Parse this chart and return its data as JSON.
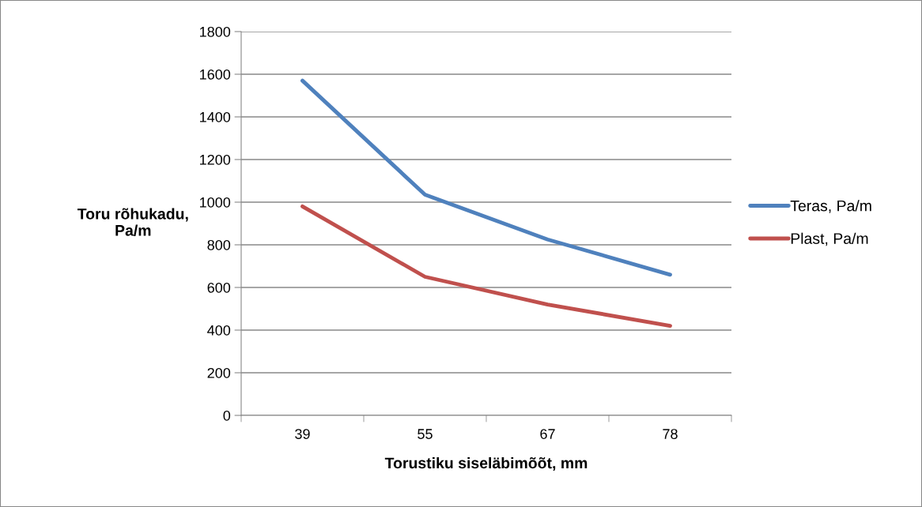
{
  "chart_data": {
    "type": "line",
    "xlabel": "Torustiku siseläbimõõt, mm",
    "ylabel": "Toru rõhukadu,\nPa/m",
    "categories": [
      "39",
      "55",
      "67",
      "78"
    ],
    "series": [
      {
        "name": "Teras, Pa/m",
        "color": "#4f81bd",
        "values": [
          1570,
          1035,
          825,
          660
        ]
      },
      {
        "name": "Plast, Pa/m",
        "color": "#c0504d",
        "values": [
          980,
          650,
          520,
          420
        ]
      }
    ],
    "ylim": [
      0,
      1800
    ],
    "yticks": [
      0,
      200,
      400,
      600,
      800,
      1000,
      1200,
      1400,
      1600,
      1800
    ],
    "grid": "y",
    "legend": "right",
    "marker": "none",
    "line_style": "solid"
  }
}
